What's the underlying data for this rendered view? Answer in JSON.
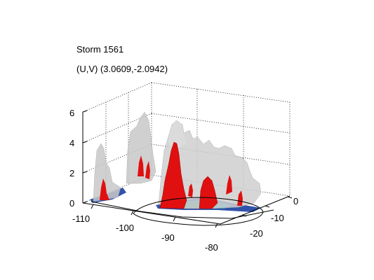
{
  "title_lines": [
    "Storm 1561",
    "(U,V) (3.0609,-2.0942)"
  ],
  "colors": {
    "background": "#ffffff",
    "isosurface_low": "#c8c8c8",
    "isosurface_high": "#e01010",
    "base_blue": "#1a3fa0",
    "base_cyan": "#20b0c0",
    "base_green": "#30a060"
  },
  "chart_data": {
    "type": "3d-isosurface",
    "x_ticks": [
      -110,
      -100,
      -90,
      -80
    ],
    "y_ticks": [
      -20,
      -10,
      0
    ],
    "z_ticks": [
      0,
      2,
      4,
      6
    ],
    "xlim": [
      -112,
      -80
    ],
    "ylim": [
      -26,
      0
    ],
    "zlim": [
      0,
      6
    ],
    "grid": true,
    "isosurfaces": [
      {
        "color": "gray",
        "tops": [
          {
            "x": -109,
            "y": -4,
            "z": 3.2
          },
          {
            "x": -102,
            "y": -2,
            "z": 4.8
          },
          {
            "x": -99,
            "y": -1,
            "z": 4.6
          },
          {
            "x": -95,
            "y": -2,
            "z": 4.2
          },
          {
            "x": -92,
            "y": -5,
            "z": 3.8
          },
          {
            "x": -88,
            "y": -6,
            "z": 3.3
          },
          {
            "x": -85,
            "y": -8,
            "z": 2.8
          }
        ]
      },
      {
        "color": "red",
        "tops": [
          {
            "x": -108,
            "y": -5,
            "z": 1.2
          },
          {
            "x": -101,
            "y": -3,
            "z": 2.3
          },
          {
            "x": -98,
            "y": -2,
            "z": 2.0
          },
          {
            "x": -95,
            "y": -9,
            "z": 3.6
          },
          {
            "x": -90,
            "y": -10,
            "z": 1.6
          },
          {
            "x": -87,
            "y": -9,
            "z": 1.4
          }
        ]
      }
    ]
  }
}
